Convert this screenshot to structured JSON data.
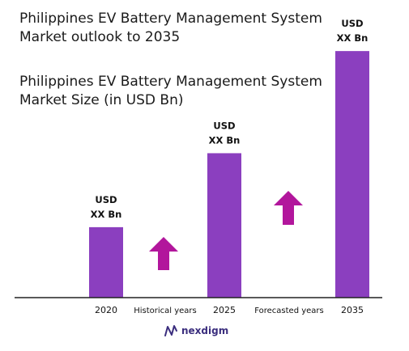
{
  "header": {
    "title_line1": "Philippines EV Battery Management System",
    "title_line2": "Market outlook to 2035",
    "subtitle_line1": "Philippines EV Battery Management System",
    "subtitle_line2": "Market Size (in USD Bn)"
  },
  "colors": {
    "bar": "#8b3fbf",
    "arrow": "#b2169c",
    "axis": "#222222",
    "brand": "#3b2e7e"
  },
  "icons": {
    "growth_arrow": "up-arrow-icon",
    "brand_logo": "nexdigm-logo-icon"
  },
  "brand": {
    "name": "nexdigm"
  },
  "chart_data": {
    "type": "bar",
    "categories": [
      "2020",
      "2025",
      "2035"
    ],
    "values": [
      1,
      2.05,
      3.5
    ],
    "data_labels": [
      [
        "USD",
        "XX Bn"
      ],
      [
        "USD",
        "XX Bn"
      ],
      [
        "USD",
        "XX Bn"
      ]
    ],
    "gap_labels": [
      "Historical years",
      "Forecasted years"
    ],
    "ylim": [
      0,
      3.8
    ],
    "grid": false,
    "legend": "none"
  }
}
